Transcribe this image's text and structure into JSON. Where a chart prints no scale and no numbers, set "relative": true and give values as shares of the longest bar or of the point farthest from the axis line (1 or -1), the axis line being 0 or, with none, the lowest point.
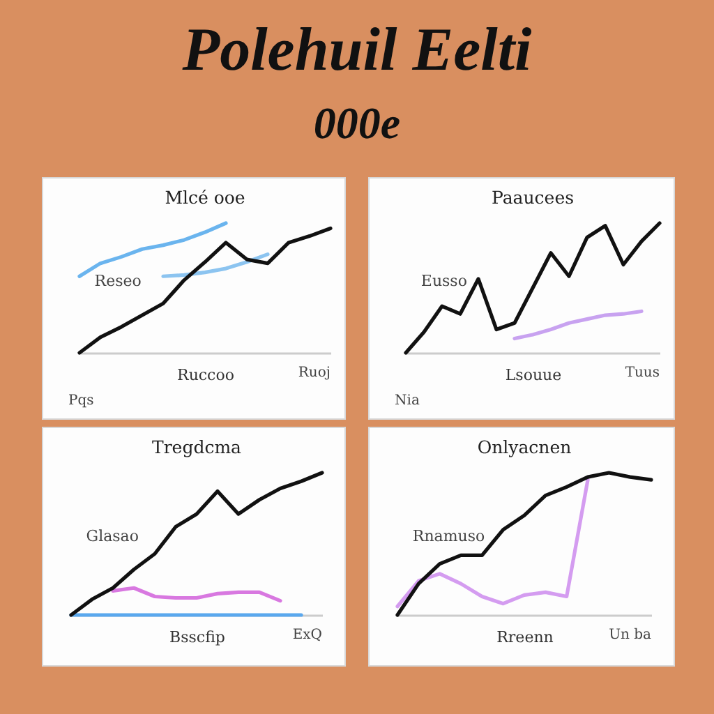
{
  "chart_data": [
    {
      "type": "other",
      "title": "Polehuil Eelti",
      "subtitle": "000e"
    },
    {
      "type": "line",
      "title": "Mlcé ooe",
      "xlabel": "Ruccoo",
      "relative": true,
      "categories": [
        null,
        null,
        null,
        null,
        null,
        null,
        null,
        null,
        null,
        null,
        null,
        null,
        null
      ],
      "series": [
        {
          "color": "#6ab4ee",
          "values": [
            0.59,
            0.69,
            0.74,
            0.8,
            0.83,
            0.87,
            0.93,
            1,
            null,
            null,
            null,
            null,
            null
          ]
        },
        {
          "color": "#8cc4f0",
          "values": [
            null,
            null,
            null,
            null,
            0.59,
            0.6,
            0.62,
            0.65,
            0.7,
            0.76,
            null,
            null,
            null
          ]
        },
        {
          "color": "#111111",
          "values": [
            0,
            0.12,
            0.2,
            0.29,
            0.38,
            0.56,
            0.7,
            0.85,
            0.72,
            0.69,
            0.85,
            0.9,
            0.96
          ]
        }
      ],
      "annotations": [
        "Reseo",
        "Ruoj",
        "Pqs"
      ]
    },
    {
      "type": "line",
      "title": "Paaucees",
      "xlabel": "Lsouue",
      "relative": true,
      "categories": [
        null,
        null,
        null,
        null,
        null,
        null,
        null,
        null,
        null,
        null,
        null,
        null,
        null,
        null,
        null
      ],
      "series": [
        {
          "color": "#c8a2f0",
          "values": [
            null,
            null,
            null,
            null,
            null,
            null,
            0.11,
            0.14,
            0.18,
            0.23,
            0.26,
            0.29,
            0.3,
            0.32,
            null
          ]
        },
        {
          "color": "#111111",
          "values": [
            0,
            0.16,
            0.36,
            0.3,
            0.57,
            0.18,
            0.23,
            0.5,
            0.77,
            0.59,
            0.89,
            0.98,
            0.68,
            0.86,
            1
          ]
        }
      ],
      "annotations": [
        "Eusso",
        "Tuus",
        "Nia"
      ]
    },
    {
      "type": "line",
      "title": "Tregdcma",
      "xlabel": "Bsscfip",
      "relative": true,
      "categories": [
        null,
        null,
        null,
        null,
        null,
        null,
        null,
        null,
        null,
        null,
        null,
        null,
        null
      ],
      "series": [
        {
          "color": "#5aa8ee",
          "values": [
            0,
            0,
            0,
            0,
            0,
            0,
            0,
            0,
            0,
            0,
            0,
            0,
            null
          ]
        },
        {
          "color": "#d878e0",
          "values": [
            null,
            null,
            0.17,
            0.19,
            0.13,
            0.12,
            0.12,
            0.15,
            0.16,
            0.16,
            0.1,
            null,
            null
          ]
        },
        {
          "color": "#111111",
          "values": [
            0,
            0.11,
            0.19,
            0.32,
            0.43,
            0.62,
            0.71,
            0.87,
            0.71,
            0.81,
            0.89,
            0.94,
            1
          ]
        }
      ],
      "annotations": [
        "Glasao",
        "ExQ"
      ]
    },
    {
      "type": "line",
      "title": "Onlyacnen",
      "xlabel": "Rreenn",
      "relative": true,
      "categories": [
        null,
        null,
        null,
        null,
        null,
        null,
        null,
        null,
        null,
        null,
        null,
        null,
        null
      ],
      "series": [
        {
          "color": "#d49cf0",
          "values": [
            0.06,
            0.24,
            0.29,
            0.22,
            0.13,
            0.08,
            0.14,
            0.16,
            0.13,
            0.95,
            null,
            null,
            null
          ]
        },
        {
          "color": "#111111",
          "values": [
            0,
            0.22,
            0.36,
            0.42,
            0.42,
            0.6,
            0.7,
            0.84,
            0.9,
            0.97,
            1,
            0.97,
            0.95
          ]
        }
      ],
      "annotations": [
        "Rnamuso",
        "Un ba"
      ]
    }
  ]
}
